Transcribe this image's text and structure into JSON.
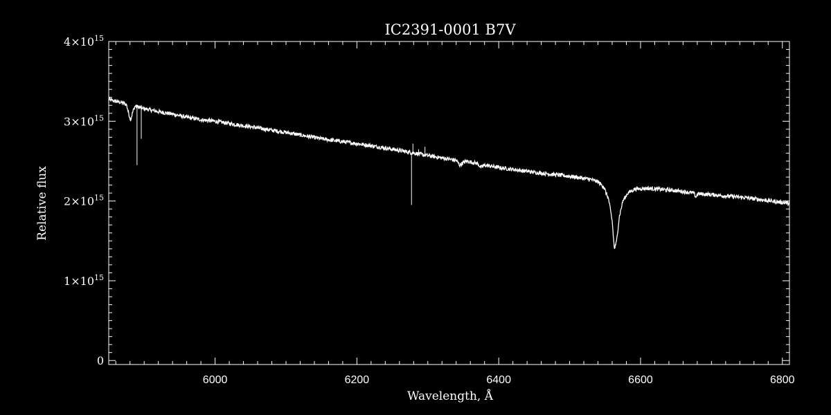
{
  "chart_data": {
    "type": "line",
    "title": "IC2391-0001   B7V",
    "xlabel": "Wavelength, Å",
    "ylabel": "Relative flux",
    "xlim": [
      5850,
      6810
    ],
    "ylim": [
      -0.05,
      4.0
    ],
    "y_scale_label": "×10^15",
    "x_ticks": [
      6000,
      6200,
      6400,
      6600,
      6800
    ],
    "x_tick_labels": [
      "6000",
      "6200",
      "6400",
      "6600",
      "6800"
    ],
    "y_ticks": [
      0,
      1,
      2,
      3,
      4
    ],
    "y_tick_labels": [
      {
        "mantissa": "0",
        "times": "",
        "base": "",
        "exp": ""
      },
      {
        "mantissa": "1",
        "times": "×",
        "base": "10",
        "exp": "15"
      },
      {
        "mantissa": "2",
        "times": "×",
        "base": "10",
        "exp": "15"
      },
      {
        "mantissa": "3",
        "times": "×",
        "base": "10",
        "exp": "15"
      },
      {
        "mantissa": "4",
        "times": "×",
        "base": "10",
        "exp": "15"
      }
    ],
    "grid": false,
    "colors": {
      "background": "#000000",
      "foreground": "#ffffff",
      "line": "#ffffff"
    },
    "series": [
      {
        "x": [
          5850,
          5860,
          5870,
          5875,
          5878,
          5881,
          5884,
          5887,
          5892,
          5898,
          5905,
          5920,
          5940,
          5960,
          5980,
          6000,
          6050,
          6100,
          6150,
          6200,
          6250,
          6300,
          6340,
          6345,
          6350,
          6355,
          6370,
          6375,
          6380,
          6400,
          6450,
          6500,
          6530,
          6540,
          6548,
          6555,
          6560,
          6563,
          6566,
          6570,
          6575,
          6582,
          6592,
          6610,
          6650,
          6675,
          6678,
          6681,
          6700,
          6750,
          6810
        ],
        "y": [
          3.27,
          3.25,
          3.23,
          3.21,
          3.1,
          3.02,
          3.12,
          3.19,
          3.18,
          3.16,
          3.15,
          3.12,
          3.09,
          3.05,
          3.02,
          3.0,
          2.93,
          2.86,
          2.78,
          2.72,
          2.65,
          2.57,
          2.51,
          2.45,
          2.48,
          2.5,
          2.47,
          2.42,
          2.45,
          2.42,
          2.36,
          2.31,
          2.27,
          2.24,
          2.18,
          2.02,
          1.75,
          1.4,
          1.48,
          1.8,
          2.0,
          2.1,
          2.15,
          2.16,
          2.13,
          2.1,
          2.05,
          2.09,
          2.08,
          2.04,
          1.97
        ]
      }
    ],
    "spikes": [
      {
        "x": 5889.9,
        "y": 2.45
      },
      {
        "x": 5895.9,
        "y": 2.78
      },
      {
        "x": 6277,
        "y": 1.95
      },
      {
        "x": 6279,
        "y": 2.72
      },
      {
        "x": 6287,
        "y": 2.65
      },
      {
        "x": 6296,
        "y": 2.68
      }
    ]
  }
}
